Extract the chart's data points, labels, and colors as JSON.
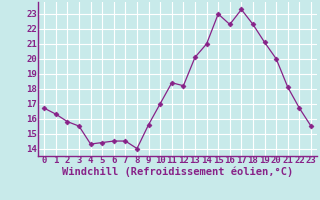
{
  "x": [
    0,
    1,
    2,
    3,
    4,
    5,
    6,
    7,
    8,
    9,
    10,
    11,
    12,
    13,
    14,
    15,
    16,
    17,
    18,
    19,
    20,
    21,
    22,
    23
  ],
  "y": [
    16.7,
    16.3,
    15.8,
    15.5,
    14.3,
    14.4,
    14.5,
    14.5,
    14.0,
    15.6,
    17.0,
    18.4,
    18.2,
    20.1,
    21.0,
    23.0,
    22.3,
    23.3,
    22.3,
    21.1,
    20.0,
    18.1,
    16.7,
    15.5
  ],
  "line_color": "#882288",
  "marker": "D",
  "marker_size": 2.5,
  "bg_color": "#c8eaea",
  "grid_color": "#ffffff",
  "xlabel": "Windchill (Refroidissement éolien,°C)",
  "xlabel_color": "#882288",
  "tick_color": "#882288",
  "ylim": [
    13.5,
    23.8
  ],
  "xlim": [
    -0.5,
    23.5
  ],
  "yticks": [
    14,
    15,
    16,
    17,
    18,
    19,
    20,
    21,
    22,
    23
  ],
  "xticks": [
    0,
    1,
    2,
    3,
    4,
    5,
    6,
    7,
    8,
    9,
    10,
    11,
    12,
    13,
    14,
    15,
    16,
    17,
    18,
    19,
    20,
    21,
    22,
    23
  ],
  "xtick_labels": [
    "0",
    "1",
    "2",
    "3",
    "4",
    "5",
    "6",
    "7",
    "8",
    "9",
    "10",
    "11",
    "12",
    "13",
    "14",
    "15",
    "16",
    "17",
    "18",
    "19",
    "20",
    "21",
    "22",
    "23"
  ],
  "ytick_labels": [
    "14",
    "15",
    "16",
    "17",
    "18",
    "19",
    "20",
    "21",
    "22",
    "23"
  ],
  "spine_color": "#882288",
  "font_size": 6.5,
  "xlabel_fontsize": 7.5
}
